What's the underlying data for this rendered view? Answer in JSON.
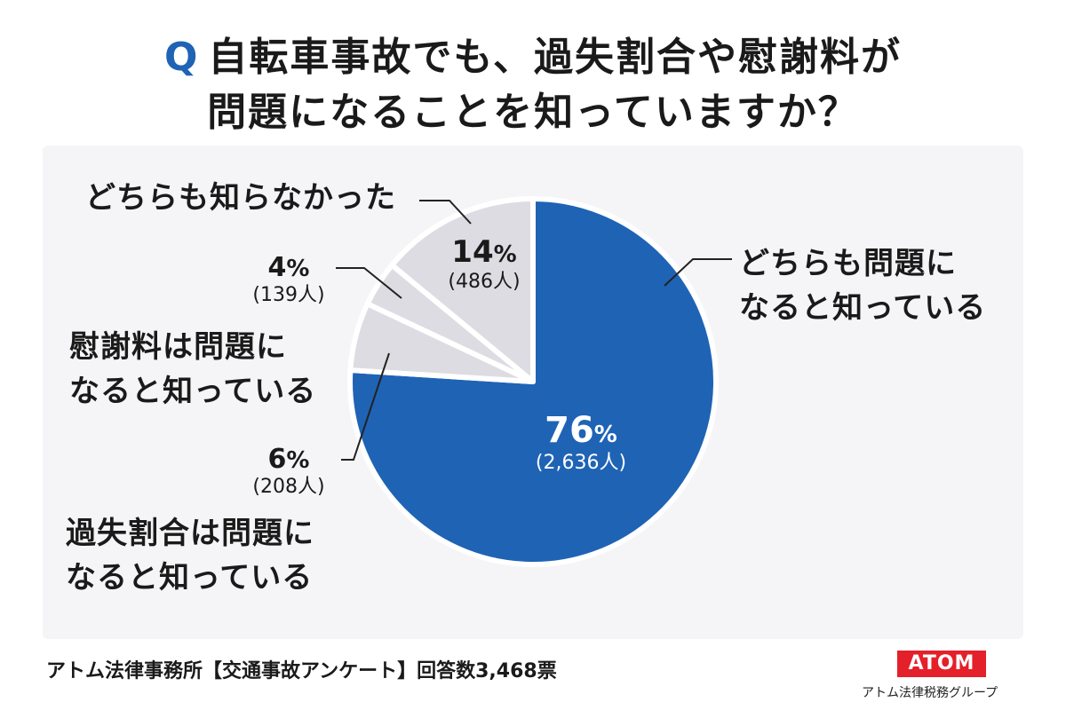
{
  "title": {
    "prefix": "Q",
    "line1": "自転車事故でも、過失割合や慰謝料が",
    "line2": "問題になることを知っていますか？"
  },
  "colors": {
    "accent": "#1f63b5",
    "gray": "#dcdce2",
    "logo": "#e4202a"
  },
  "chart_data": {
    "type": "pie",
    "slices": [
      {
        "name": "どちらも問題になると知っている",
        "line1": "どちらも問題に",
        "line2": "なると知っている",
        "percent": 76,
        "count": "(2,636人)",
        "color": "#1f63b5"
      },
      {
        "name": "過失割合は問題になると知っている",
        "line1": "過失割合は問題に",
        "line2": "なると知っている",
        "percent": 6,
        "count": "(208人)",
        "color": "#dcdce2"
      },
      {
        "name": "慰謝料は問題になると知っている",
        "line1": "慰謝料は問題に",
        "line2": "なると知っている",
        "percent": 4,
        "count": "(139人)",
        "color": "#dcdce2"
      },
      {
        "name": "どちらも知らなかった",
        "line1": "どちらも知らなかった",
        "line2": "",
        "percent": 14,
        "count": "(486人)",
        "color": "#dcdce2"
      }
    ],
    "percent_symbol": "%"
  },
  "footer": {
    "source": "アトム法律事務所【交通事故アンケート】回答数3,468票"
  },
  "logo": {
    "text": "ATOM",
    "subtitle": "アトム法律税務グループ"
  }
}
